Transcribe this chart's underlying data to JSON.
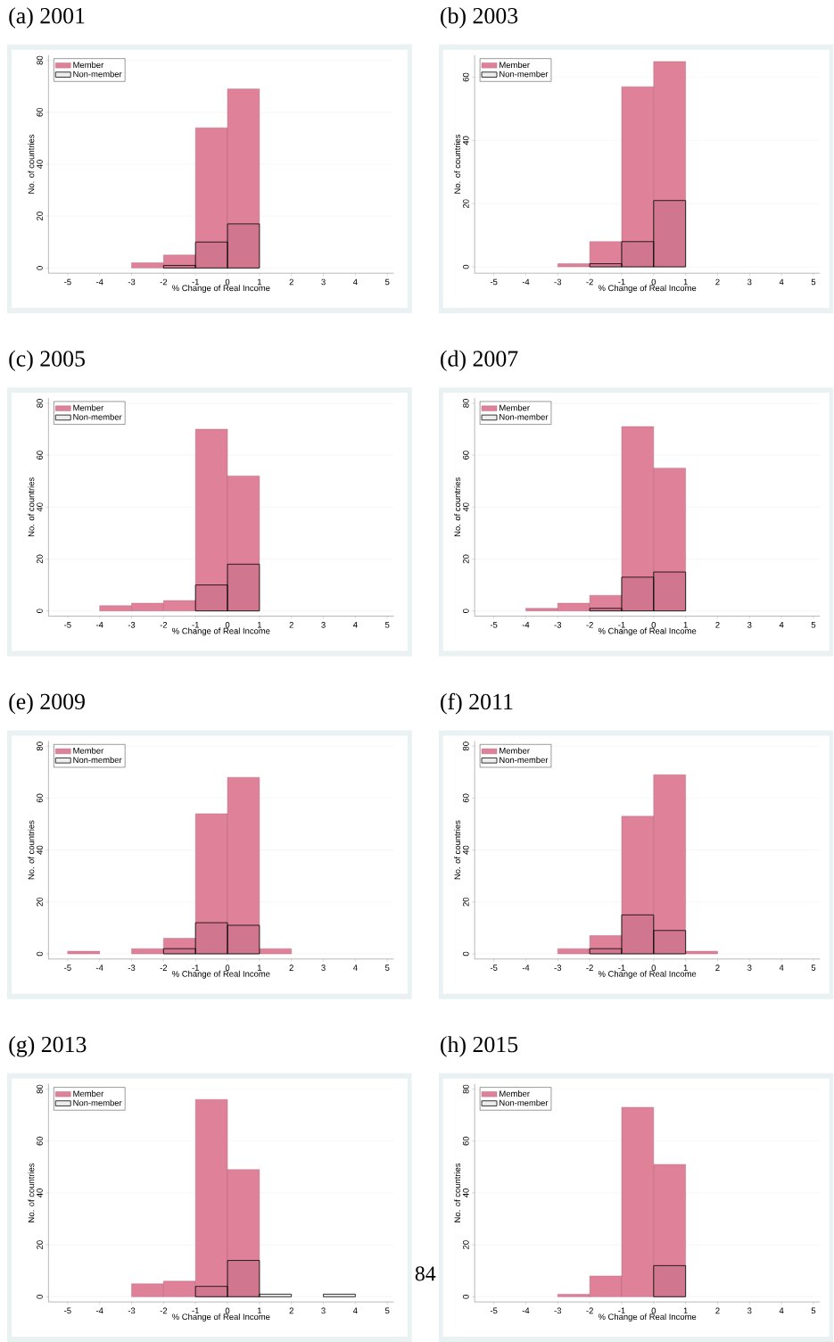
{
  "chart_data": [
    {
      "type": "histogram",
      "title": "(a) 2001",
      "xlabel": "% Change of Real Income",
      "ylabel": "No. of countries",
      "bins": [
        -5,
        -4,
        -3,
        -2,
        -1,
        0,
        1,
        2,
        3,
        4,
        5
      ],
      "series": [
        {
          "name": "Member",
          "color": "#e0819a",
          "values": [
            0,
            0,
            2,
            5,
            54,
            69,
            0,
            0,
            0,
            0
          ]
        },
        {
          "name": "Non-member",
          "color": "#000000",
          "values": [
            0,
            0,
            0,
            1,
            10,
            17,
            0,
            0,
            0,
            0
          ]
        }
      ],
      "xlim": [
        -5.6,
        5.2
      ],
      "ylim": [
        -2,
        82
      ],
      "xticks": [
        -5,
        -4,
        -3,
        -2,
        -1,
        0,
        1,
        2,
        3,
        4,
        5
      ],
      "yticks": [
        0,
        20,
        40,
        60,
        80
      ],
      "grid": "y",
      "legend": "top left"
    },
    {
      "type": "histogram",
      "title": "(b) 2003",
      "xlabel": "% Change of Real Income",
      "ylabel": "No. of countries",
      "bins": [
        -5,
        -4,
        -3,
        -2,
        -1,
        0,
        1,
        2,
        3,
        4,
        5
      ],
      "series": [
        {
          "name": "Member",
          "color": "#e0819a",
          "values": [
            0,
            0,
            1,
            8,
            57,
            65,
            0,
            0,
            0,
            0
          ]
        },
        {
          "name": "Non-member",
          "color": "#000000",
          "values": [
            0,
            0,
            0,
            1,
            8,
            21,
            0,
            0,
            0,
            0
          ]
        }
      ],
      "xlim": [
        -5.6,
        5.2
      ],
      "ylim": [
        -2,
        67
      ],
      "xticks": [
        -5,
        -4,
        -3,
        -2,
        -1,
        0,
        1,
        2,
        3,
        4,
        5
      ],
      "yticks": [
        0,
        20,
        40,
        60
      ],
      "grid": "y",
      "legend": "top left"
    },
    {
      "type": "histogram",
      "title": "(c) 2005",
      "xlabel": "% Change of Real Income",
      "ylabel": "No. of countries",
      "bins": [
        -5,
        -4,
        -3,
        -2,
        -1,
        0,
        1,
        2,
        3,
        4,
        5
      ],
      "series": [
        {
          "name": "Member",
          "color": "#e0819a",
          "values": [
            0,
            2,
            3,
            4,
            70,
            52,
            0,
            0,
            0,
            0
          ]
        },
        {
          "name": "Non-member",
          "color": "#000000",
          "values": [
            0,
            0,
            0,
            0,
            10,
            18,
            0,
            0,
            0,
            0
          ]
        }
      ],
      "xlim": [
        -5.6,
        5.2
      ],
      "ylim": [
        -2,
        82
      ],
      "xticks": [
        -5,
        -4,
        -3,
        -2,
        -1,
        0,
        1,
        2,
        3,
        4,
        5
      ],
      "yticks": [
        0,
        20,
        40,
        60,
        80
      ],
      "grid": "y",
      "legend": "top left"
    },
    {
      "type": "histogram",
      "title": "(d) 2007",
      "xlabel": "% Change of Real Income",
      "ylabel": "No. of countries",
      "bins": [
        -5,
        -4,
        -3,
        -2,
        -1,
        0,
        1,
        2,
        3,
        4,
        5
      ],
      "series": [
        {
          "name": "Member",
          "color": "#e0819a",
          "values": [
            0,
            1,
            3,
            6,
            71,
            55,
            0,
            0,
            0,
            0
          ]
        },
        {
          "name": "Non-member",
          "color": "#000000",
          "values": [
            0,
            0,
            0,
            1,
            13,
            15,
            0,
            0,
            0,
            0
          ]
        }
      ],
      "xlim": [
        -5.6,
        5.2
      ],
      "ylim": [
        -2,
        82
      ],
      "xticks": [
        -5,
        -4,
        -3,
        -2,
        -1,
        0,
        1,
        2,
        3,
        4,
        5
      ],
      "yticks": [
        0,
        20,
        40,
        60,
        80
      ],
      "grid": "y",
      "legend": "top left"
    },
    {
      "type": "histogram",
      "title": "(e) 2009",
      "xlabel": "% Change of Real Income",
      "ylabel": "No. of countries",
      "bins": [
        -5,
        -4,
        -3,
        -2,
        -1,
        0,
        1,
        2,
        3,
        4,
        5
      ],
      "series": [
        {
          "name": "Member",
          "color": "#e0819a",
          "values": [
            1,
            0,
            2,
            6,
            54,
            68,
            2,
            0,
            0,
            0
          ]
        },
        {
          "name": "Non-member",
          "color": "#000000",
          "values": [
            0,
            0,
            0,
            2,
            12,
            11,
            0,
            0,
            0,
            0
          ]
        }
      ],
      "xlim": [
        -5.6,
        5.2
      ],
      "ylim": [
        -2,
        82
      ],
      "xticks": [
        -5,
        -4,
        -3,
        -2,
        -1,
        0,
        1,
        2,
        3,
        4,
        5
      ],
      "yticks": [
        0,
        20,
        40,
        60,
        80
      ],
      "grid": "y",
      "legend": "top left"
    },
    {
      "type": "histogram",
      "title": "(f) 2011",
      "xlabel": "% Change of Real Income",
      "ylabel": "No. of countries",
      "bins": [
        -5,
        -4,
        -3,
        -2,
        -1,
        0,
        1,
        2,
        3,
        4,
        5
      ],
      "series": [
        {
          "name": "Member",
          "color": "#e0819a",
          "values": [
            0,
            0,
            2,
            7,
            53,
            69,
            1,
            0,
            0,
            0
          ]
        },
        {
          "name": "Non-member",
          "color": "#000000",
          "values": [
            0,
            0,
            0,
            2,
            15,
            9,
            0,
            0,
            0,
            0
          ]
        }
      ],
      "xlim": [
        -5.6,
        5.2
      ],
      "ylim": [
        -2,
        82
      ],
      "xticks": [
        -5,
        -4,
        -3,
        -2,
        -1,
        0,
        1,
        2,
        3,
        4,
        5
      ],
      "yticks": [
        0,
        20,
        40,
        60,
        80
      ],
      "grid": "y",
      "legend": "top left"
    },
    {
      "type": "histogram",
      "title": "(g) 2013",
      "xlabel": "% Change of Real Income",
      "ylabel": "No. of countries",
      "bins": [
        -5,
        -4,
        -3,
        -2,
        -1,
        0,
        1,
        2,
        3,
        4,
        5
      ],
      "series": [
        {
          "name": "Member",
          "color": "#e0819a",
          "values": [
            0,
            0,
            5,
            6,
            76,
            49,
            0,
            0,
            0,
            0
          ]
        },
        {
          "name": "Non-member",
          "color": "#000000",
          "values": [
            0,
            0,
            0,
            0,
            4,
            14,
            1,
            0,
            1,
            0
          ]
        }
      ],
      "xlim": [
        -5.6,
        5.2
      ],
      "ylim": [
        -2,
        82
      ],
      "xticks": [
        -5,
        -4,
        -3,
        -2,
        -1,
        0,
        1,
        2,
        3,
        4,
        5
      ],
      "yticks": [
        0,
        20,
        40,
        60,
        80
      ],
      "grid": "y",
      "legend": "top left",
      "annotations": [
        "84"
      ]
    },
    {
      "type": "histogram",
      "title": "(h) 2015",
      "xlabel": "% Change of Real Income",
      "ylabel": "No. of countries",
      "bins": [
        -5,
        -4,
        -3,
        -2,
        -1,
        0,
        1,
        2,
        3,
        4,
        5
      ],
      "series": [
        {
          "name": "Member",
          "color": "#e0819a",
          "values": [
            0,
            0,
            1,
            8,
            73,
            51,
            0,
            0,
            0,
            0
          ]
        },
        {
          "name": "Non-member",
          "color": "#000000",
          "values": [
            0,
            0,
            0,
            0,
            0,
            12,
            0,
            0,
            0,
            0
          ]
        }
      ],
      "xlim": [
        -5.6,
        5.2
      ],
      "ylim": [
        -2,
        82
      ],
      "xticks": [
        -5,
        -4,
        -3,
        -2,
        -1,
        0,
        1,
        2,
        3,
        4,
        5
      ],
      "yticks": [
        0,
        20,
        40,
        60,
        80
      ],
      "grid": "y",
      "legend": "top left"
    }
  ]
}
